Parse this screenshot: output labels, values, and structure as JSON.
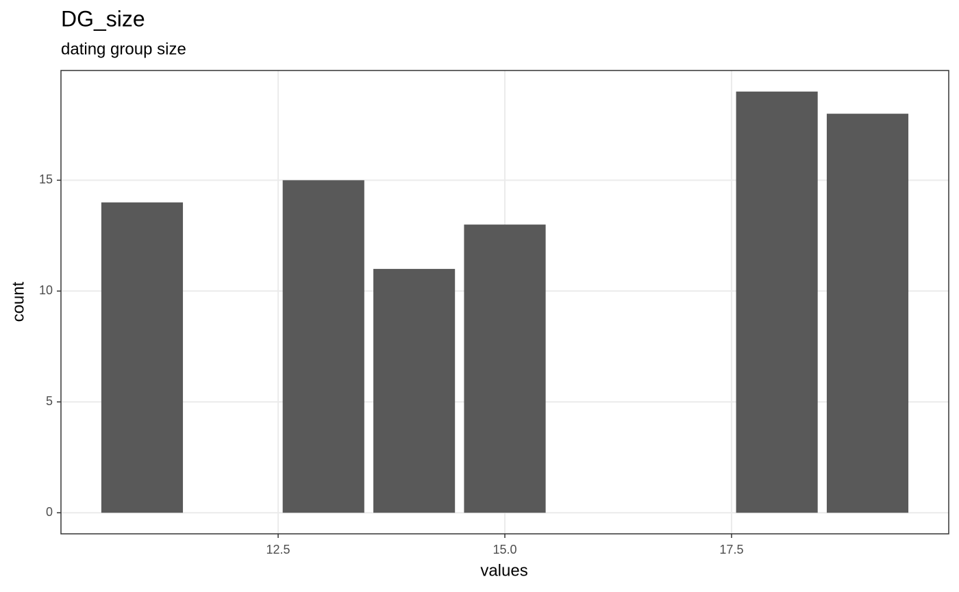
{
  "chart_data": {
    "type": "bar",
    "title": "DG_size",
    "subtitle": "dating group size",
    "x_label": "values",
    "y_label": "count",
    "x": [
      11,
      13,
      14,
      15,
      18,
      19
    ],
    "values": [
      14,
      15,
      11,
      13,
      19,
      18
    ],
    "color": "#595959",
    "xlim": [
      10.105,
      19.895
    ],
    "xticks": [
      12.5,
      {
        "value": 15,
        "label": "15.0"
      },
      17.5
    ],
    "ylim": [
      -0.95,
      19.95
    ],
    "yticks": [
      0,
      5,
      10,
      15
    ],
    "grid": true
  }
}
